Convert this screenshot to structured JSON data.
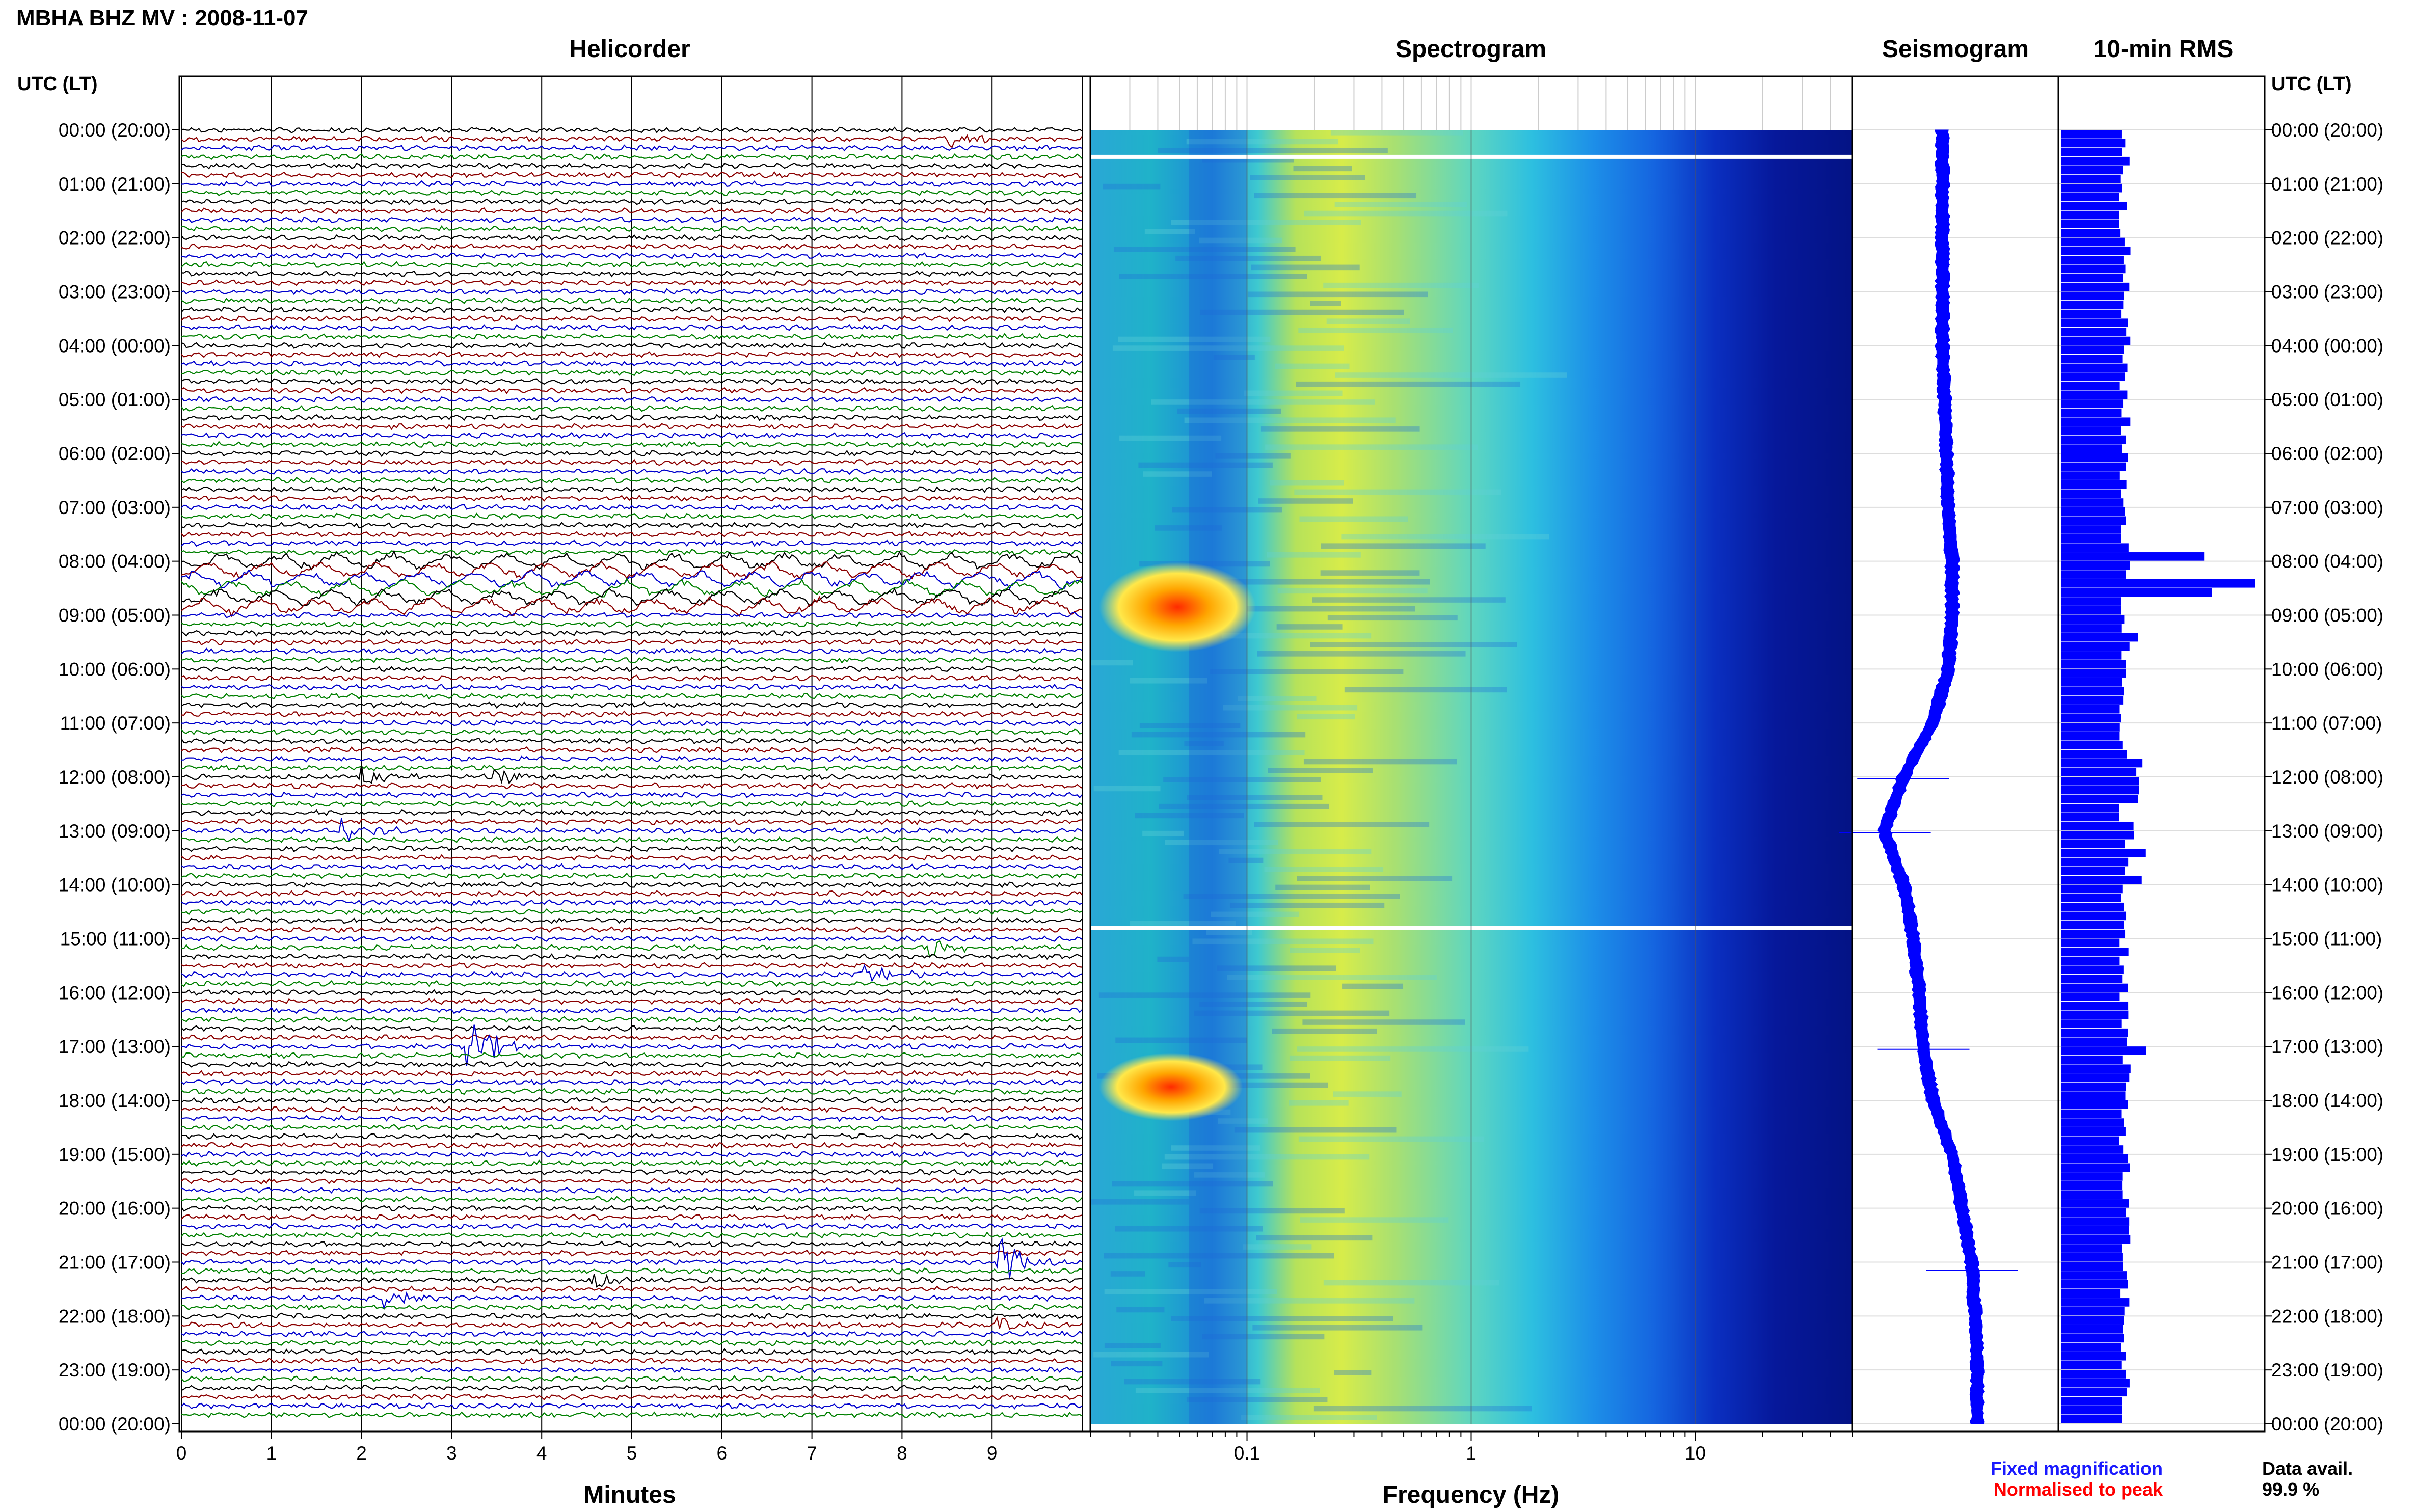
{
  "header": {
    "title": "MBHA BHZ MV : 2008-11-07"
  },
  "panels": {
    "helicorder": "Helicorder",
    "spectrogram": "Spectrogram",
    "seismogram": "Seismogram",
    "rms": "10-min RMS"
  },
  "axes": {
    "time_header_left": "UTC (LT)",
    "time_header_right": "UTC (LT)",
    "minutes_label": "Minutes",
    "frequency_label": "Frequency (Hz)"
  },
  "legend": {
    "fixed": "Fixed magnification",
    "normalised": "Normalised to peak",
    "fixed_color": "#1a1aff",
    "normalised_color": "#ff0000"
  },
  "availability": {
    "label": "Data avail.",
    "value": "99.9 %"
  },
  "colors": {
    "trace_cycle": [
      "#000000",
      "#8b0000",
      "#0000cd",
      "#008000"
    ],
    "rms_bar": "#0000ff",
    "seismogram": "#0000ff",
    "spectrogram_low": "#00008b",
    "spectrogram_high": "#ff0000"
  },
  "chart_data": [
    {
      "type": "line",
      "name": "helicorder",
      "xlabel": "Minutes",
      "x_ticks": [
        0,
        1,
        2,
        3,
        4,
        5,
        6,
        7,
        8,
        9
      ],
      "xlim": [
        0,
        10
      ],
      "y_tick_labels": [
        "00:00 (20:00)",
        "01:00 (21:00)",
        "02:00 (22:00)",
        "03:00 (23:00)",
        "04:00 (00:00)",
        "05:00 (01:00)",
        "06:00 (02:00)",
        "07:00 (03:00)",
        "08:00 (04:00)",
        "09:00 (05:00)",
        "10:00 (06:00)",
        "11:00 (07:00)",
        "12:00 (08:00)",
        "13:00 (09:00)",
        "14:00 (10:00)",
        "15:00 (11:00)",
        "16:00 (12:00)",
        "17:00 (13:00)",
        "18:00 (14:00)",
        "19:00 (15:00)",
        "20:00 (16:00)",
        "21:00 (17:00)",
        "22:00 (18:00)",
        "23:00 (19:00)",
        "00:00 (20:00)"
      ],
      "lines_per_hour": 6,
      "events": [
        {
          "hour": 17.0,
          "minute": 3.2,
          "amplitude": 4
        },
        {
          "hour": 21.0,
          "minute": 9.1,
          "amplitude": 3
        },
        {
          "hour": 13.0,
          "minute": 1.8,
          "amplitude": 1.5
        },
        {
          "hour": 12.0,
          "minute": 2.0,
          "amplitude": 1.2
        },
        {
          "hour": 12.0,
          "minute": 3.5,
          "amplitude": 1.2
        },
        {
          "hour": 15.2,
          "minute": 8.3,
          "amplitude": 1.2
        },
        {
          "hour": 15.6,
          "minute": 7.6,
          "amplitude": 1.3
        },
        {
          "hour": 0.1,
          "minute": 8.5,
          "amplitude": 1.0
        },
        {
          "hour": 21.3,
          "minute": 4.6,
          "amplitude": 1.0
        },
        {
          "hour": 21.6,
          "minute": 2.3,
          "amplitude": 1.0
        },
        {
          "hour": 22.2,
          "minute": 9.1,
          "amplitude": 0.8
        }
      ],
      "long_period_window": [
        8.0,
        9.0
      ]
    },
    {
      "type": "heatmap",
      "name": "spectrogram",
      "xlabel": "Frequency (Hz)",
      "x_scale": "log",
      "xlim": [
        0.02,
        50
      ],
      "x_tick_labels": [
        "0.1",
        "1",
        "10"
      ],
      "x_tick_values": [
        0.1,
        1,
        10
      ],
      "gaps_hours": [
        0.5,
        14.8
      ],
      "hot_bands": [
        {
          "hours": [
            8.3,
            9.4
          ],
          "freq": [
            0.03,
            0.08
          ]
        },
        {
          "hours": [
            17.4,
            18.1
          ],
          "freq": [
            0.03,
            0.07
          ]
        }
      ]
    },
    {
      "type": "line",
      "name": "seismogram",
      "hours": [
        0,
        2,
        4,
        6,
        7,
        8,
        9,
        10,
        11,
        12,
        13,
        14,
        15,
        16,
        17,
        18,
        19,
        20,
        21,
        22,
        23,
        24
      ],
      "offset": [
        0,
        0,
        0,
        0.02,
        0.03,
        0.05,
        0.05,
        0.03,
        -0.05,
        -0.2,
        -0.3,
        -0.2,
        -0.15,
        -0.12,
        -0.1,
        -0.05,
        0.05,
        0.1,
        0.15,
        0.17,
        0.18,
        0.18
      ]
    },
    {
      "type": "bar",
      "name": "rms",
      "bins_per_hour": 6,
      "x_relative_max": 1.0,
      "notable_peaks": [
        {
          "hour": 7.8,
          "value": 0.74
        },
        {
          "hour": 8.3,
          "value": 1.0
        },
        {
          "hour": 8.5,
          "value": 0.78
        },
        {
          "hour": 9.3,
          "value": 0.4
        },
        {
          "hour": 17.0,
          "value": 0.44
        },
        {
          "hour": 21.0,
          "value": 0.32
        }
      ]
    }
  ]
}
